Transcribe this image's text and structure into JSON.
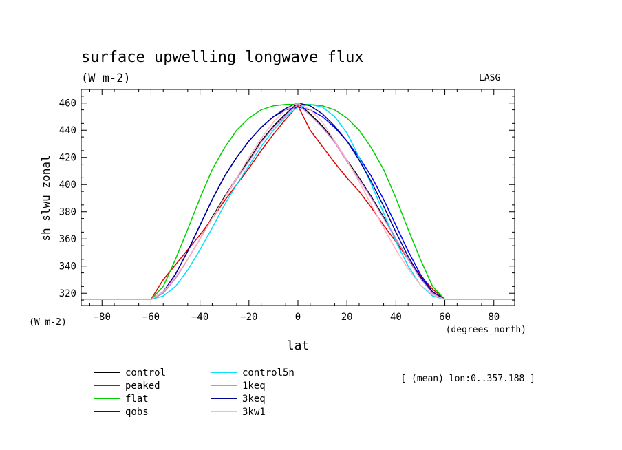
{
  "chart_data": {
    "type": "line",
    "title": "surface upwelling longwave flux",
    "subtitle": "(W m-2)",
    "source_label": "LASG",
    "xlabel": "lat",
    "xunits": "(degrees_north)",
    "ylabel": "sh_slwu_zonal",
    "yunits": "(W m-2)",
    "annotation": "[ (mean) lon:0..357.188 ]",
    "xlim": [
      -88.5,
      88.5
    ],
    "ylim": [
      311,
      470
    ],
    "xticks": [
      -80,
      -60,
      -40,
      -20,
      0,
      20,
      40,
      60,
      80
    ],
    "yticks": [
      320,
      340,
      360,
      380,
      400,
      420,
      440,
      460
    ],
    "grid": false,
    "legend_position": "bottom-left",
    "series": [
      {
        "name": "control",
        "color": "#000000",
        "x": [
          -88.5,
          -60,
          -55,
          -50,
          -45,
          -40,
          -35,
          -30,
          -25,
          -20,
          -15,
          -10,
          -5,
          0,
          5,
          10,
          15,
          20,
          25,
          30,
          35,
          40,
          45,
          50,
          55,
          60,
          88.5
        ],
        "y": [
          315.5,
          315.5,
          320,
          331,
          345,
          360,
          376,
          391,
          405,
          418,
          432,
          443,
          452,
          460,
          452,
          443,
          432,
          418,
          405,
          391,
          376,
          360,
          345,
          331,
          320,
          315.5,
          315.5
        ]
      },
      {
        "name": "peaked",
        "color": "#e00000",
        "x": [
          -88.5,
          -60,
          -55,
          -50,
          -45,
          -40,
          -35,
          -30,
          -25,
          -20,
          -15,
          -10,
          -5,
          0,
          5,
          10,
          15,
          20,
          25,
          30,
          35,
          40,
          45,
          50,
          55,
          60,
          88.5
        ],
        "y": [
          315.5,
          315.5,
          330,
          341,
          352,
          363,
          375,
          388,
          400,
          412,
          425,
          437,
          448,
          458,
          440,
          428,
          416,
          405,
          395,
          383,
          370,
          358,
          345,
          333,
          323,
          315.5,
          315.5
        ]
      },
      {
        "name": "flat",
        "color": "#00d000",
        "x": [
          -88.5,
          -60,
          -55,
          -50,
          -45,
          -40,
          -35,
          -30,
          -25,
          -20,
          -15,
          -10,
          -5,
          0,
          5,
          10,
          15,
          20,
          25,
          30,
          35,
          40,
          45,
          50,
          55,
          60,
          88.5
        ],
        "y": [
          315.5,
          315.5,
          325,
          345,
          367,
          390,
          411,
          427,
          440,
          449,
          455,
          458,
          459,
          459,
          459,
          458,
          455,
          449,
          440,
          427,
          411,
          390,
          367,
          345,
          325,
          315.5,
          315.5
        ]
      },
      {
        "name": "qobs",
        "color": "#0000ff",
        "x": [
          -88.5,
          -60,
          -55,
          -50,
          -45,
          -40,
          -35,
          -30,
          -25,
          -20,
          -15,
          -10,
          -5,
          0,
          5,
          10,
          15,
          20,
          25,
          30,
          35,
          40,
          45,
          50,
          55,
          60,
          88.5
        ],
        "y": [
          315.5,
          315.5,
          321,
          334,
          351,
          370,
          389,
          406,
          420,
          432,
          442,
          450,
          455,
          457,
          455,
          450,
          442,
          432,
          420,
          406,
          389,
          370,
          351,
          334,
          321,
          315.5,
          315.5
        ]
      },
      {
        "name": "control5n",
        "color": "#00e0ff",
        "x": [
          -88.5,
          -60,
          -55,
          -50,
          -45,
          -40,
          -35,
          -30,
          -25,
          -20,
          -15,
          -10,
          -5,
          0,
          5,
          10,
          15,
          20,
          25,
          30,
          35,
          40,
          45,
          50,
          55,
          60,
          88.5
        ],
        "y": [
          315.5,
          315.5,
          318,
          325,
          337,
          352,
          368,
          385,
          400,
          414,
          428,
          440,
          450,
          457,
          459,
          457,
          450,
          438,
          420,
          400,
          379,
          358,
          340,
          326,
          318,
          315.5,
          315.5
        ]
      },
      {
        "name": "1keq",
        "color": "#cc88dd",
        "x": [
          -88.5,
          -60,
          -55,
          -50,
          -45,
          -40,
          -35,
          -30,
          -25,
          -20,
          -15,
          -10,
          -5,
          0,
          5,
          10,
          15,
          20,
          25,
          30,
          35,
          40,
          45,
          50,
          55,
          60,
          88.5
        ],
        "y": [
          315.5,
          315.5,
          320,
          331,
          345,
          360,
          375,
          390,
          404,
          417,
          431,
          442,
          451,
          459,
          451,
          442,
          431,
          417,
          404,
          390,
          375,
          360,
          345,
          331,
          320,
          315.5,
          315.5
        ]
      },
      {
        "name": "3keq",
        "color": "#000090",
        "x": [
          -88.5,
          -60,
          -55,
          -50,
          -45,
          -40,
          -35,
          -30,
          -25,
          -20,
          -15,
          -10,
          -5,
          0,
          5,
          10,
          15,
          20,
          25,
          30,
          35,
          40,
          45,
          50,
          55,
          60,
          88.5
        ],
        "y": [
          315.5,
          315.5,
          321,
          334,
          351,
          370,
          389,
          406,
          420,
          432,
          442,
          450,
          456,
          460,
          458,
          452,
          443,
          432,
          418,
          402,
          384,
          365,
          347,
          332,
          321,
          315.5,
          315.5
        ]
      },
      {
        "name": "3kw1",
        "color": "#ffb6c1",
        "x": [
          -88.5,
          -60,
          -55,
          -50,
          -45,
          -40,
          -35,
          -30,
          -25,
          -20,
          -15,
          -10,
          -5,
          0,
          5,
          10,
          15,
          20,
          25,
          30,
          35,
          40,
          45,
          50,
          55,
          60,
          88.5
        ],
        "y": [
          315.5,
          315.5,
          321,
          332,
          345,
          360,
          375,
          390,
          405,
          420,
          434,
          446,
          455,
          460,
          455,
          446,
          432,
          418,
          402,
          385,
          368,
          352,
          338,
          326,
          319,
          315.5,
          315.5
        ]
      }
    ]
  }
}
